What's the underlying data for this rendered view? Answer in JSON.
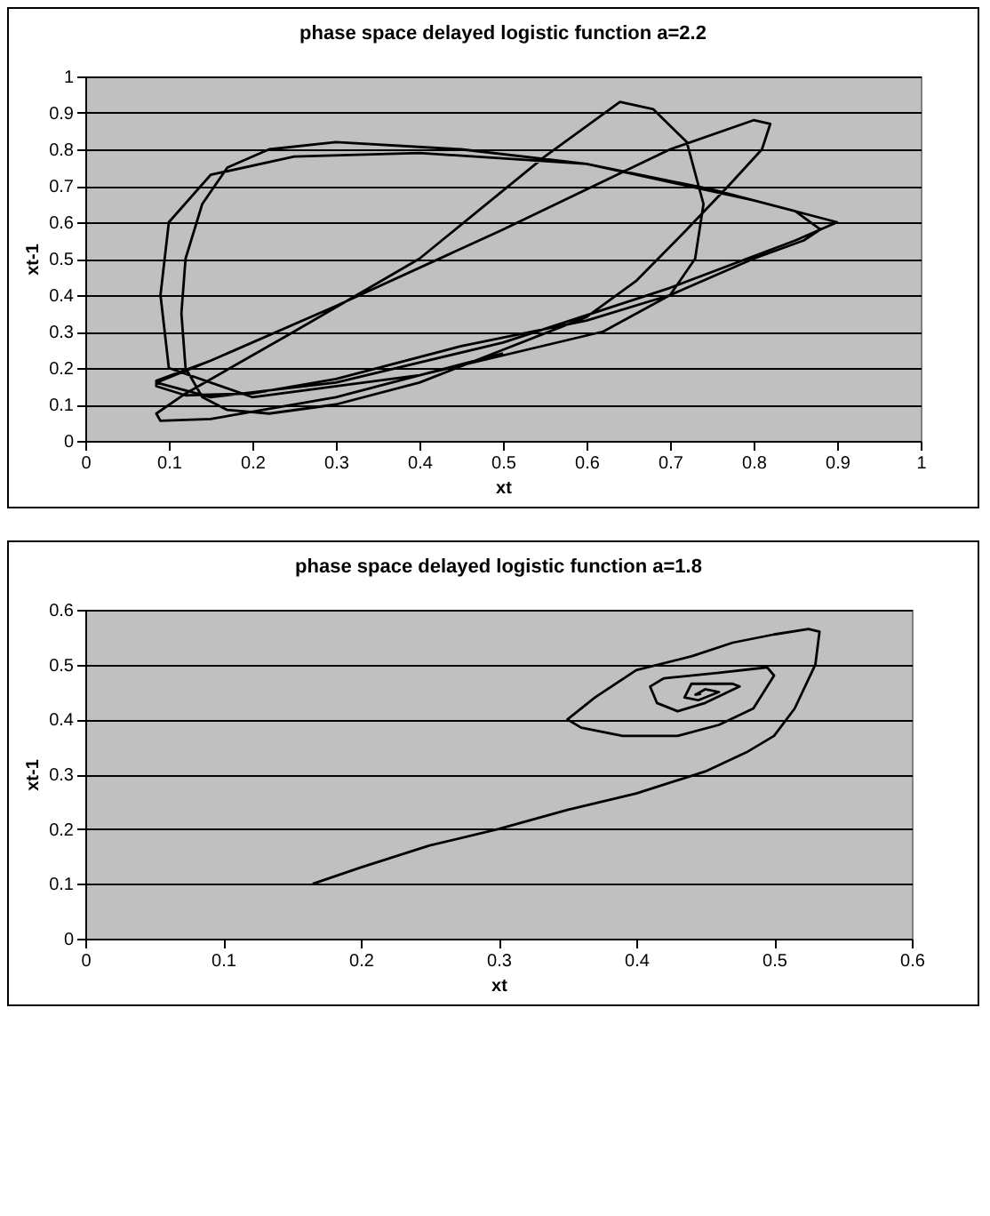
{
  "chart_data": [
    {
      "type": "line",
      "title": "phase space delayed logistic function a=2.2",
      "xlabel": "xt",
      "ylabel": "xt-1",
      "xlim": [
        0,
        1
      ],
      "ylim": [
        0,
        1
      ],
      "xticks": [
        0,
        0.1,
        0.2,
        0.3,
        0.4,
        0.5,
        0.6,
        0.7,
        0.8,
        0.9,
        1
      ],
      "yticks": [
        0,
        0.1,
        0.2,
        0.3,
        0.4,
        0.5,
        0.6,
        0.7,
        0.8,
        0.9,
        1
      ],
      "grid": "y",
      "marker": "none",
      "line_style": "solid",
      "series": [
        {
          "color": "#000000",
          "x": [
            0.5,
            0.3,
            0.15,
            0.09,
            0.085,
            0.12,
            0.25,
            0.4,
            0.55,
            0.64,
            0.68,
            0.72,
            0.74,
            0.73,
            0.7,
            0.62,
            0.4,
            0.2,
            0.1,
            0.09,
            0.1,
            0.15,
            0.25,
            0.4,
            0.6,
            0.8,
            0.9,
            0.85,
            0.7,
            0.5,
            0.3,
            0.15,
            0.085,
            0.15,
            0.3,
            0.5,
            0.7,
            0.8,
            0.82,
            0.81,
            0.77,
            0.72,
            0.66,
            0.6,
            0.5,
            0.4,
            0.3,
            0.22,
            0.17,
            0.14,
            0.12,
            0.115,
            0.12,
            0.14,
            0.17,
            0.22,
            0.3,
            0.45,
            0.6,
            0.75,
            0.85,
            0.88,
            0.86,
            0.8,
            0.7,
            0.6,
            0.45,
            0.3,
            0.2,
            0.12,
            0.085,
            0.085,
            0.15,
            0.3,
            0.5,
            0.7,
            0.8,
            0.82,
            0.81,
            0.77,
            0.72,
            0.66,
            0.6,
            0.5,
            0.4,
            0.3,
            0.22,
            0.17,
            0.14,
            0.12,
            0.115,
            0.12,
            0.14,
            0.17,
            0.22,
            0.3,
            0.45,
            0.6,
            0.75,
            0.85,
            0.88,
            0.86,
            0.8,
            0.7,
            0.6,
            0.45,
            0.3,
            0.2,
            0.12,
            0.085
          ],
          "values": [
            0.24,
            0.12,
            0.06,
            0.055,
            0.075,
            0.13,
            0.3,
            0.5,
            0.78,
            0.93,
            0.91,
            0.82,
            0.65,
            0.5,
            0.4,
            0.3,
            0.18,
            0.12,
            0.2,
            0.4,
            0.6,
            0.73,
            0.78,
            0.79,
            0.76,
            0.66,
            0.6,
            0.55,
            0.42,
            0.27,
            0.16,
            0.12,
            0.16,
            0.22,
            0.37,
            0.58,
            0.8,
            0.88,
            0.87,
            0.8,
            0.7,
            0.58,
            0.44,
            0.34,
            0.25,
            0.16,
            0.1,
            0.075,
            0.085,
            0.12,
            0.2,
            0.35,
            0.5,
            0.65,
            0.75,
            0.8,
            0.82,
            0.8,
            0.76,
            0.69,
            0.63,
            0.58,
            0.55,
            0.5,
            0.4,
            0.33,
            0.26,
            0.17,
            0.13,
            0.125,
            0.15,
            0.165,
            0.22,
            0.37,
            0.58,
            0.8,
            0.88,
            0.87,
            0.8,
            0.7,
            0.58,
            0.44,
            0.34,
            0.25,
            0.16,
            0.1,
            0.075,
            0.085,
            0.12,
            0.2,
            0.35,
            0.5,
            0.65,
            0.75,
            0.8,
            0.82,
            0.8,
            0.76,
            0.69,
            0.63,
            0.58,
            0.55,
            0.5,
            0.4,
            0.33,
            0.26,
            0.17,
            0.13,
            0.125,
            0.15
          ]
        }
      ]
    },
    {
      "type": "line",
      "title": "phase space delayed logistic function a=1.8",
      "xlabel": "xt",
      "ylabel": "xt-1",
      "xlim": [
        0,
        0.6
      ],
      "ylim": [
        0,
        0.6
      ],
      "xticks": [
        0,
        0.1,
        0.2,
        0.3,
        0.4,
        0.5,
        0.6
      ],
      "yticks": [
        0,
        0.1,
        0.2,
        0.3,
        0.4,
        0.5,
        0.6
      ],
      "grid": "y",
      "marker": "none",
      "line_style": "solid",
      "series": [
        {
          "color": "#000000",
          "x": [
            0.165,
            0.2,
            0.25,
            0.3,
            0.35,
            0.4,
            0.45,
            0.48,
            0.5,
            0.515,
            0.53,
            0.533,
            0.525,
            0.5,
            0.47,
            0.44,
            0.4,
            0.37,
            0.35,
            0.36,
            0.39,
            0.43,
            0.46,
            0.485,
            0.5,
            0.495,
            0.46,
            0.42,
            0.41,
            0.415,
            0.43,
            0.45,
            0.475,
            0.47,
            0.44,
            0.435,
            0.445,
            0.46,
            0.45,
            0.443,
            0.447
          ],
          "values": [
            0.1,
            0.13,
            0.17,
            0.2,
            0.235,
            0.265,
            0.305,
            0.34,
            0.37,
            0.42,
            0.5,
            0.56,
            0.565,
            0.555,
            0.54,
            0.515,
            0.49,
            0.44,
            0.4,
            0.385,
            0.37,
            0.37,
            0.39,
            0.42,
            0.48,
            0.495,
            0.485,
            0.475,
            0.46,
            0.43,
            0.415,
            0.43,
            0.46,
            0.465,
            0.465,
            0.44,
            0.435,
            0.45,
            0.455,
            0.445,
            0.447
          ]
        }
      ]
    }
  ]
}
